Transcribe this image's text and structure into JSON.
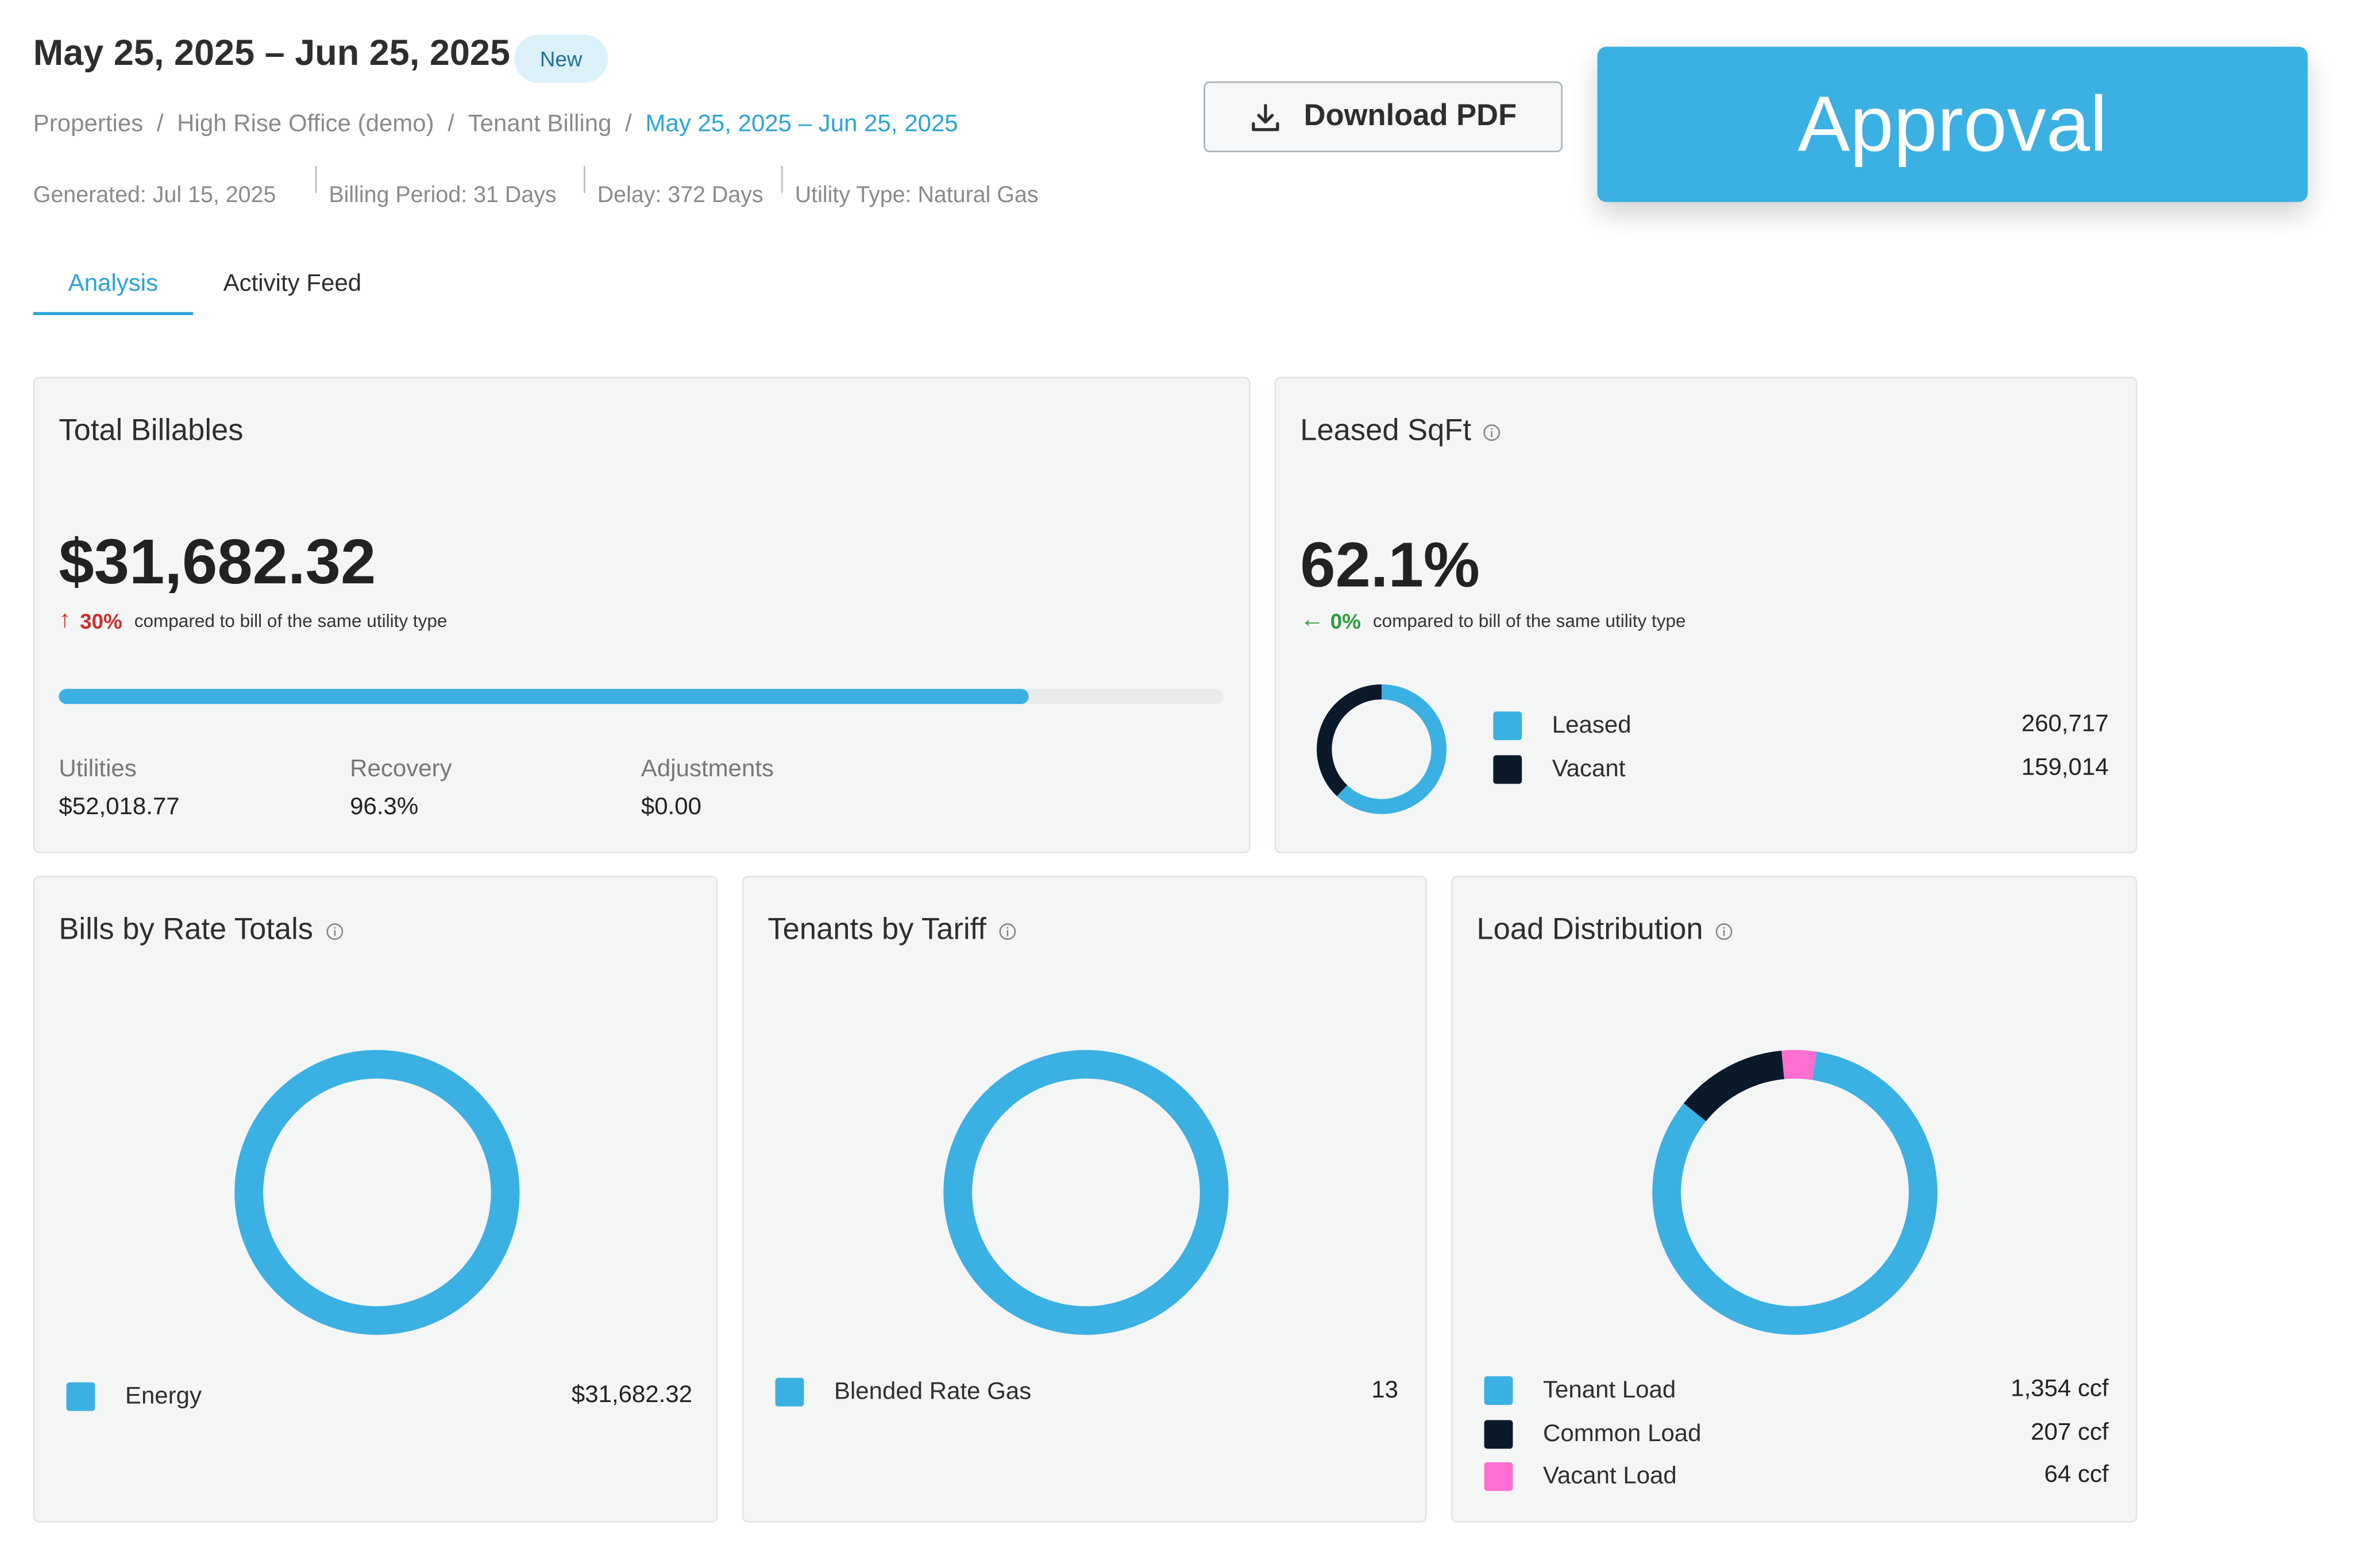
{
  "header": {
    "title": "May 25, 2025 – Jun 25, 2025",
    "badge": "New",
    "breadcrumb": [
      "Properties",
      "High Rise Office (demo)",
      "Tenant Billing",
      "May 25, 2025 – Jun 25, 2025"
    ],
    "breadcrumb_separator": "/",
    "meta": {
      "generated": "Generated: Jul 15, 2025",
      "billing_period": "Billing Period: 31 Days",
      "delay": "Delay: 372 Days",
      "utility_type": "Utility Type: Natural Gas"
    },
    "download_label": "Download PDF",
    "approval_label": "Approval"
  },
  "tabs": [
    {
      "label": "Analysis",
      "active": true
    },
    {
      "label": "Activity Feed",
      "active": false
    }
  ],
  "total_billables": {
    "title": "Total Billables",
    "amount": "$31,682.32",
    "delta_arrow": "↑",
    "delta_pct": "30%",
    "delta_text": "compared to bill of the same utility type",
    "progress_fraction": 0.833,
    "stats": [
      {
        "label": "Utilities",
        "value": "$52,018.77"
      },
      {
        "label": "Recovery",
        "value": "96.3%"
      },
      {
        "label": "Adjustments",
        "value": "$0.00"
      }
    ]
  },
  "leased_sqft": {
    "title": "Leased SqFt",
    "percent": "62.1%",
    "delta_arrow": "←",
    "delta_pct": "0%",
    "delta_text": "compared to bill of the same utility type",
    "legend": [
      {
        "label": "Leased",
        "value": "260,717",
        "amount": 260717,
        "color": "#3bb0e3"
      },
      {
        "label": "Vacant",
        "value": "159,014",
        "amount": 159014,
        "color": "#0b1a2b"
      }
    ]
  },
  "bills_by_rate": {
    "title": "Bills by Rate Totals",
    "legend": [
      {
        "label": "Energy",
        "value": "$31,682.32",
        "amount": 31682.32,
        "color": "#3bb0e3"
      }
    ]
  },
  "tenants_by_tariff": {
    "title": "Tenants by Tariff",
    "legend": [
      {
        "label": "Blended Rate Gas",
        "value": "13",
        "amount": 13,
        "color": "#3bb0e3"
      }
    ]
  },
  "load_distribution": {
    "title": "Load Distribution",
    "legend": [
      {
        "label": "Tenant Load",
        "value": "1,354 ccf",
        "amount": 1354,
        "color": "#3bb0e3"
      },
      {
        "label": "Common Load",
        "value": "207 ccf",
        "amount": 207,
        "color": "#0b1a2b"
      },
      {
        "label": "Vacant Load",
        "value": "64 ccf",
        "amount": 64,
        "color": "#ff6fd1"
      }
    ]
  }
}
